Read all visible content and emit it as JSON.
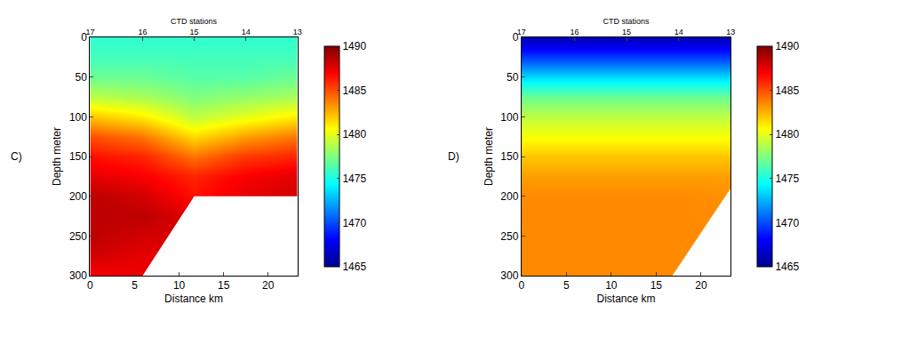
{
  "chart_data": [
    {
      "type": "heatmap",
      "panel": "C)",
      "x_label": "Distance km",
      "y_label": "Depth meter",
      "x2_label": "CTD stations",
      "x": [
        0,
        5.9,
        11.7,
        17.5,
        23.3
      ],
      "y": [
        0,
        25,
        50,
        75,
        100,
        125,
        150,
        175,
        200,
        225,
        250,
        275,
        300
      ],
      "z": [
        [
          1475.5,
          1475.5,
          1475.5,
          1475.5,
          1475.5
        ],
        [
          1476,
          1476,
          1476,
          1476,
          1476
        ],
        [
          1477,
          1477,
          1476.5,
          1476.5,
          1477
        ],
        [
          1479,
          1478.5,
          1477.5,
          1478,
          1478.5
        ],
        [
          1482,
          1481,
          1479,
          1480,
          1481
        ],
        [
          1485,
          1484,
          1481.5,
          1483,
          1484
        ],
        [
          1486.5,
          1486,
          1484,
          1485.5,
          1486
        ],
        [
          1487.5,
          1487,
          1486,
          1487,
          1487.5
        ],
        [
          1488.5,
          1488,
          1486.5,
          1487.5,
          1488
        ],
        [
          1488.5,
          1488.5,
          null,
          null,
          null
        ],
        [
          1488.5,
          1488,
          null,
          null,
          null
        ],
        [
          1488,
          1487.5,
          null,
          null,
          null
        ],
        [
          1487,
          null,
          null,
          null,
          null
        ]
      ],
      "xlim": [
        0,
        23.3
      ],
      "xticks": [
        0,
        5,
        10,
        15,
        20
      ],
      "ylim": [
        300,
        0
      ],
      "yticks": [
        0,
        50,
        100,
        150,
        200,
        250,
        300
      ],
      "x2lim": [
        0,
        23.3
      ],
      "x2ticks": [
        {
          "value": 0,
          "label": "17"
        },
        {
          "value": 5.9,
          "label": "16"
        },
        {
          "value": 11.7,
          "label": "15"
        },
        {
          "value": 17.5,
          "label": "14"
        },
        {
          "value": 23.3,
          "label": "13"
        }
      ],
      "seabed": {
        "x": [
          5.9,
          11.7,
          23.3
        ],
        "y": [
          300,
          200,
          200
        ]
      },
      "colorbar": {
        "range": [
          1465,
          1490
        ],
        "ticks": [
          1465,
          1470,
          1475,
          1480,
          1485,
          1490
        ]
      }
    },
    {
      "type": "heatmap",
      "panel": "D)",
      "x_label": "Distance km",
      "y_label": "Depth meter",
      "x2_label": "CTD stations",
      "x": [
        0,
        5.9,
        11.7,
        17.5,
        23.3
      ],
      "y": [
        0,
        25,
        50,
        75,
        100,
        125,
        150,
        175,
        200,
        225,
        250,
        275,
        300
      ],
      "z": [
        [
          1466,
          1466,
          1466,
          1466,
          1466
        ],
        [
          1469.5,
          1469.5,
          1469.5,
          1469.5,
          1469.5
        ],
        [
          1473.5,
          1473.5,
          1473.5,
          1473.5,
          1473.5
        ],
        [
          1477,
          1477,
          1477,
          1477,
          1477
        ],
        [
          1479,
          1479,
          1479,
          1479,
          1479
        ],
        [
          1480.5,
          1480.5,
          1480.5,
          1480.5,
          1480.5
        ],
        [
          1482,
          1482,
          1482,
          1482,
          1482
        ],
        [
          1483,
          1483,
          1483,
          1483,
          1483
        ],
        [
          1483.5,
          1483.5,
          1483.5,
          1483.5,
          null
        ],
        [
          1483.5,
          1483.5,
          1483.5,
          1483.5,
          null
        ],
        [
          1483.5,
          1483.5,
          1483.5,
          1483.5,
          null
        ],
        [
          1483.5,
          1483.5,
          1483.5,
          1483.5,
          null
        ],
        [
          1483.5,
          1483.5,
          1483.5,
          null,
          null
        ]
      ],
      "xlim": [
        0,
        23.3
      ],
      "xticks": [
        0,
        5,
        10,
        15,
        20
      ],
      "ylim": [
        300,
        0
      ],
      "yticks": [
        0,
        50,
        100,
        150,
        200,
        250,
        300
      ],
      "x2lim": [
        0,
        23.3
      ],
      "x2ticks": [
        {
          "value": 0,
          "label": "17"
        },
        {
          "value": 5.9,
          "label": "16"
        },
        {
          "value": 11.7,
          "label": "15"
        },
        {
          "value": 17.5,
          "label": "14"
        },
        {
          "value": 23.3,
          "label": "13"
        }
      ],
      "seabed": {
        "x": [
          16.8,
          23.3
        ],
        "y": [
          300,
          190
        ]
      },
      "colorbar": {
        "range": [
          1465,
          1490
        ],
        "ticks": [
          1465,
          1470,
          1475,
          1480,
          1485,
          1490
        ]
      }
    }
  ]
}
